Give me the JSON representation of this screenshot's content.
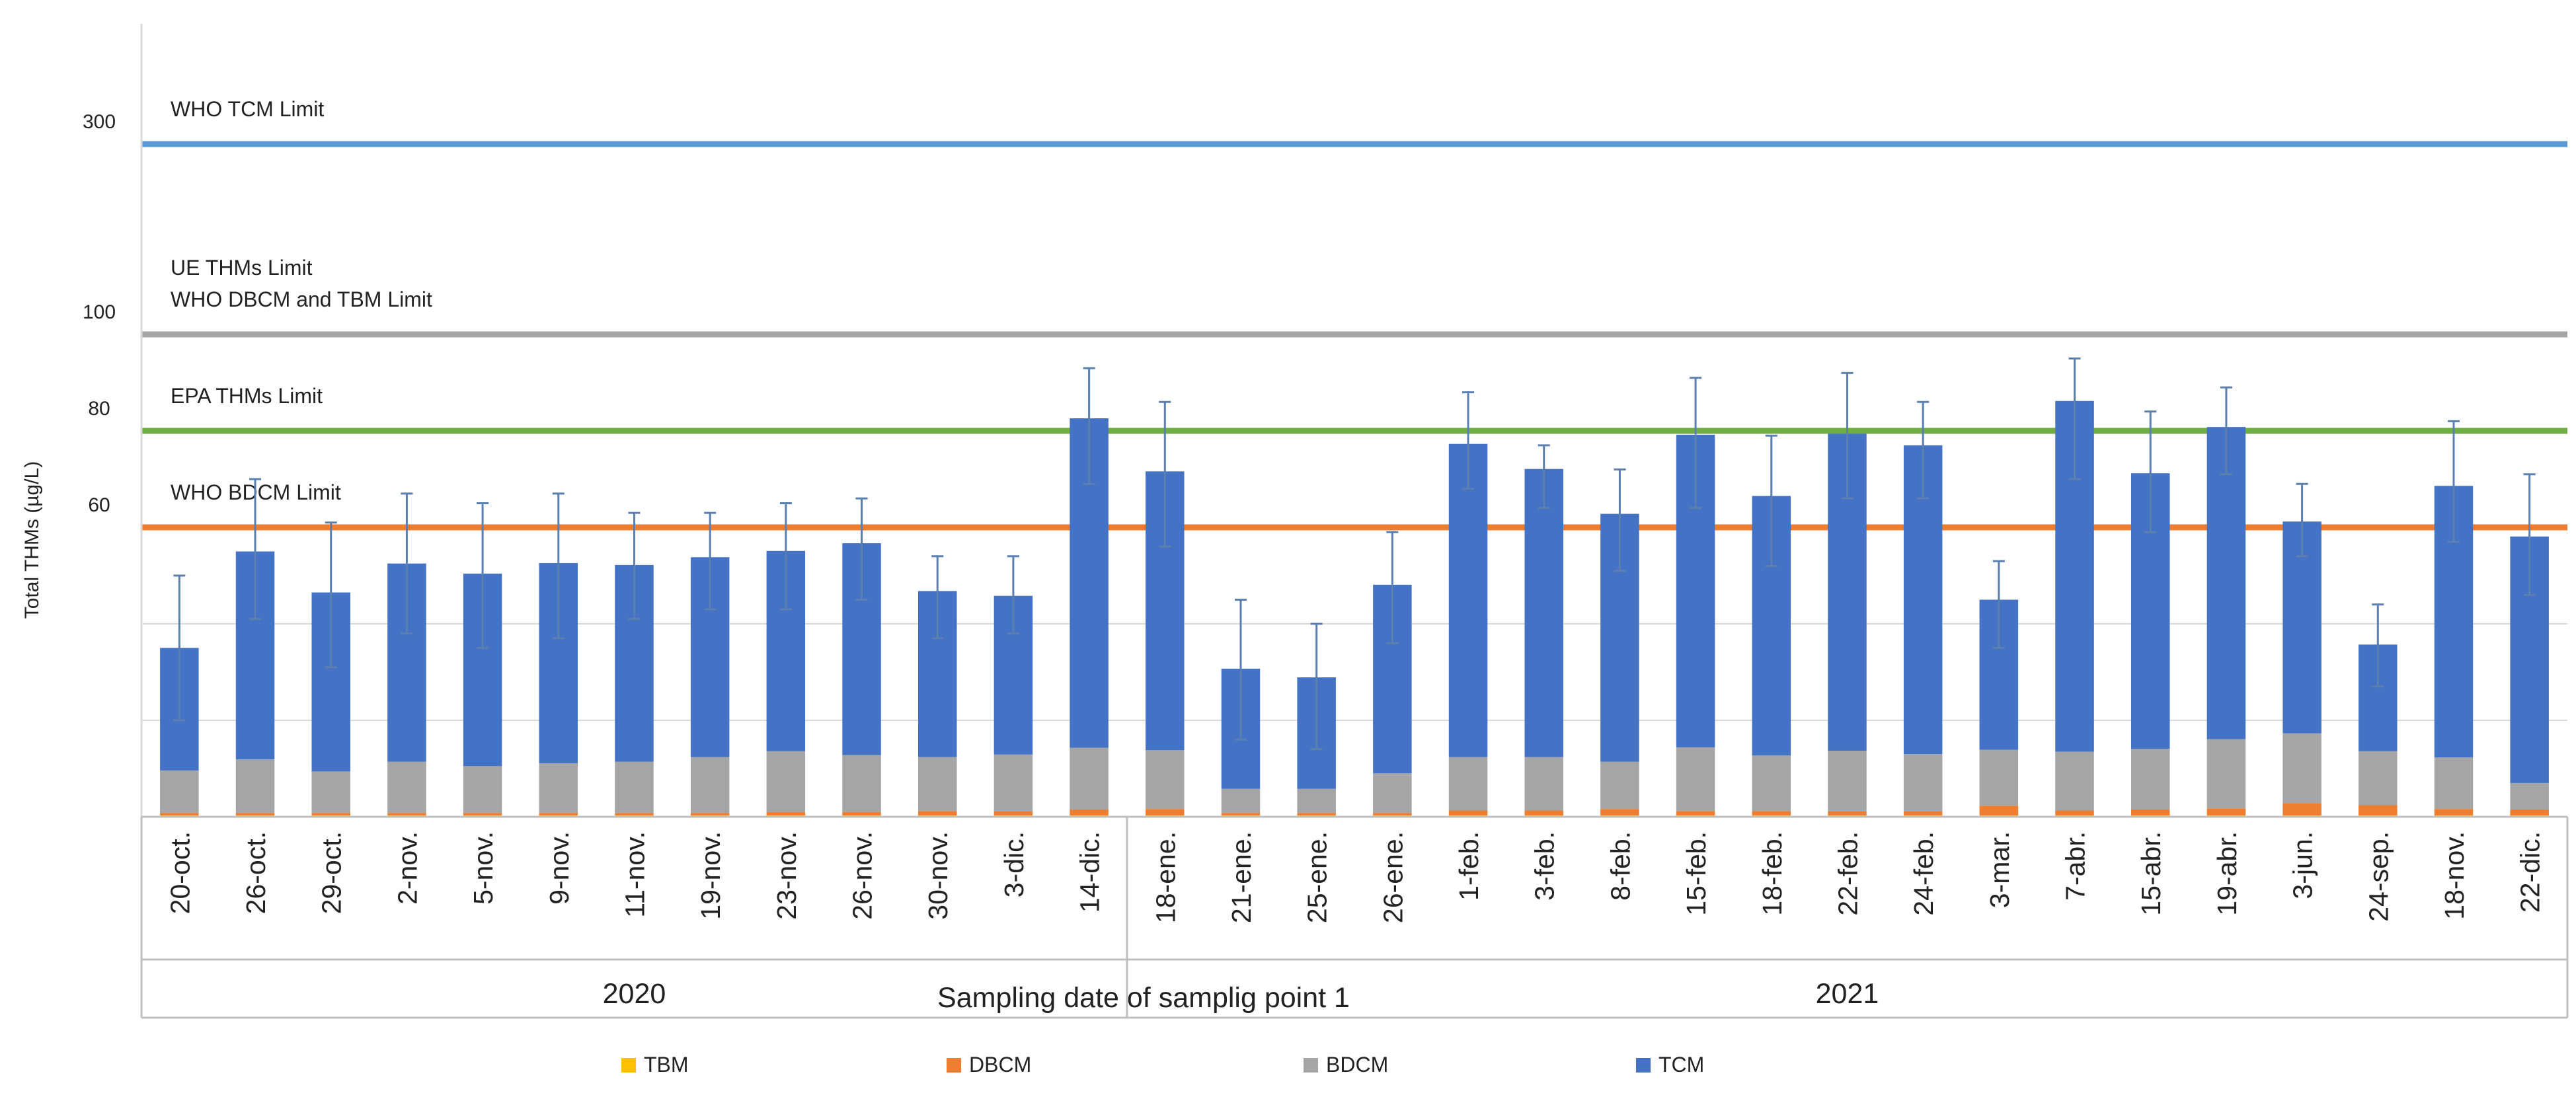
{
  "chart_data": {
    "type": "bar",
    "stacked": true,
    "xlabel": "Sampling date of samplig point 1",
    "ylabel": "Total THMs (µg/L)",
    "y_ticks": [
      "300",
      "100",
      "80",
      "60"
    ],
    "categories": [
      "20-oct.",
      "26-oct.",
      "29-oct.",
      "2-nov.",
      "5-nov.",
      "9-nov.",
      "11-nov.",
      "19-nov.",
      "23-nov.",
      "26-nov.",
      "30-nov.",
      "3-dic.",
      "14-dic.",
      "18-ene.",
      "21-ene.",
      "25-ene.",
      "26-ene.",
      "1-feb.",
      "3-feb.",
      "8-feb.",
      "15-feb.",
      "18-feb.",
      "22-feb.",
      "24-feb.",
      "3-mar.",
      "7-abr.",
      "15-abr.",
      "19-abr.",
      "3-jun.",
      "24-sep.",
      "18-nov.",
      "22-dic."
    ],
    "year_groups": [
      {
        "label": "2020",
        "start": 0,
        "end": 12
      },
      {
        "label": "2021",
        "start": 13,
        "end": 31
      }
    ],
    "series": [
      {
        "name": "TBM",
        "color": "#FFC000",
        "values": [
          0.3,
          0.3,
          0.3,
          0.3,
          0.3,
          0.3,
          0.3,
          0.3,
          0.3,
          0.3,
          0.3,
          0.3,
          0.3,
          0.3,
          0.3,
          0.3,
          0.3,
          0.3,
          0.3,
          0.3,
          0.3,
          0.3,
          0.3,
          0.3,
          0.3,
          0.3,
          0.3,
          0.3,
          0.3,
          0.3,
          0.3,
          0.3
        ]
      },
      {
        "name": "DBCM",
        "color": "#ED7D31",
        "values": [
          0.5,
          0.5,
          0.5,
          0.5,
          0.5,
          0.5,
          0.5,
          0.5,
          0.7,
          0.7,
          0.9,
          0.8,
          1.2,
          1.3,
          0.5,
          0.5,
          0.5,
          1.0,
          1.0,
          1.3,
          0.9,
          0.9,
          0.8,
          0.8,
          2.0,
          1.0,
          1.2,
          1.4,
          2.5,
          2.1,
          1.3,
          1.2
        ]
      },
      {
        "name": "BDCM",
        "color": "#A5A5A5",
        "values": [
          8.8,
          11.1,
          8.6,
          10.6,
          9.7,
          10.3,
          10.6,
          11.6,
          12.6,
          11.8,
          11.2,
          11.8,
          12.8,
          12.2,
          5.0,
          5.0,
          8.2,
          11.1,
          11.1,
          9.8,
          13.2,
          11.5,
          12.6,
          11.9,
          11.6,
          12.2,
          12.6,
          14.4,
          14.5,
          11.2,
          10.7,
          5.5
        ]
      },
      {
        "name": "TCM",
        "color": "#4472C4",
        "values": [
          25.4,
          43.1,
          37.1,
          41.1,
          39.9,
          41.5,
          40.8,
          41.4,
          41.5,
          43.9,
          34.4,
          32.9,
          68.3,
          57.8,
          24.9,
          23.1,
          39.1,
          64.9,
          59.7,
          51.4,
          64.8,
          53.8,
          65.7,
          64.0,
          31.1,
          72.7,
          57.1,
          64.7,
          43.9,
          22.1,
          56.3,
          51.1
        ]
      }
    ],
    "error_bars": {
      "low": [
        20.0,
        41.0,
        31.0,
        38.0,
        35.0,
        37.0,
        41.0,
        43.0,
        43.0,
        45.0,
        37.0,
        38.0,
        69.0,
        56.0,
        16.0,
        14.0,
        36.0,
        68.0,
        64.0,
        51.0,
        64.0,
        52.0,
        66.0,
        66.0,
        35.0,
        70.0,
        59.0,
        71.0,
        54.0,
        27.0,
        57.0,
        46.0
      ],
      "high": [
        50.0,
        70.0,
        61.0,
        67.0,
        65.0,
        67.0,
        63.0,
        63.0,
        65.0,
        66.0,
        54.0,
        54.0,
        93.0,
        86.0,
        45.0,
        40.0,
        59.0,
        88.0,
        77.0,
        72.0,
        91.0,
        79.0,
        92.0,
        86.0,
        53.0,
        95.0,
        84.0,
        89.0,
        69.0,
        44.0,
        82.0,
        71.0
      ]
    },
    "reference_lines": [
      {
        "value": 300,
        "color": "#5B9BD5",
        "labels": [
          "WHO TCM Limit"
        ]
      },
      {
        "value": 100,
        "color": "#A5A5A5",
        "labels": [
          "UE THMs Limit",
          "WHO DBCM and TBM Limit"
        ]
      },
      {
        "value": 80,
        "color": "#70AD47",
        "labels": [
          "EPA THMs Limit"
        ]
      },
      {
        "value": 60,
        "color": "#ED7D31",
        "labels": [
          "WHO BDCM Limit"
        ]
      }
    ],
    "legend_position": "bottom"
  }
}
